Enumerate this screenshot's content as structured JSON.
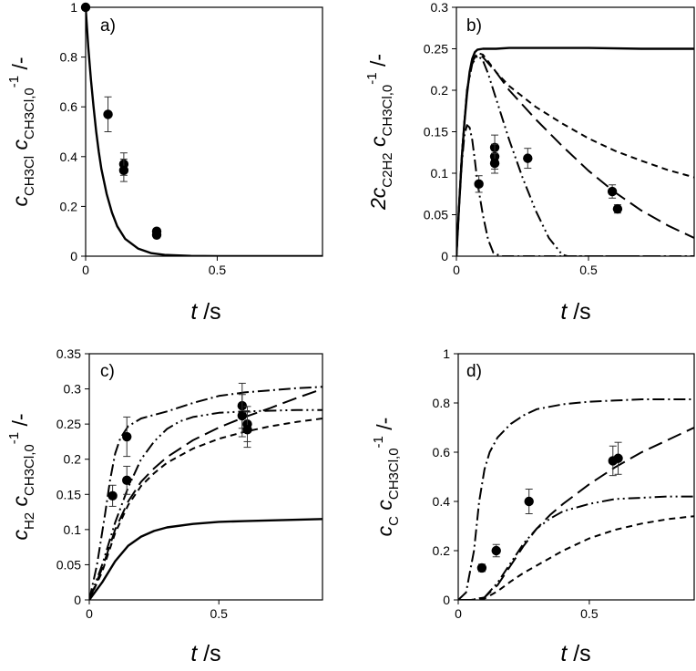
{
  "chart_data": [
    {
      "type": "scatter",
      "panel_label": "a)",
      "xlabel": {
        "var": "t",
        "unit": " /s"
      },
      "ylabel": {
        "parts": [
          [
            "c",
            ""
          ],
          [
            "CH3Cl",
            "sub"
          ],
          [
            "  c",
            ""
          ],
          [
            "CH3Cl,0",
            "sub"
          ],
          [
            "-1",
            "sup"
          ],
          [
            " /-",
            ""
          ]
        ]
      },
      "xlim": [
        0,
        0.9
      ],
      "ylim": [
        0,
        1
      ],
      "xticks": [
        "0",
        "0.5"
      ],
      "xtick_values": [
        0,
        0.5
      ],
      "yticks": [
        "0",
        "0.2",
        "0.4",
        "0.6",
        "0.8",
        "1"
      ],
      "ytick_values": [
        0,
        0.2,
        0.4,
        0.6,
        0.8,
        1.0
      ],
      "points": [
        {
          "x": 0.0,
          "y": 1.0,
          "err": 0
        },
        {
          "x": 0.085,
          "y": 0.57,
          "err": 0.07
        },
        {
          "x": 0.145,
          "y": 0.37,
          "err": 0.045
        },
        {
          "x": 0.145,
          "y": 0.345,
          "err": 0.045
        },
        {
          "x": 0.27,
          "y": 0.1,
          "err": 0
        },
        {
          "x": 0.27,
          "y": 0.085,
          "err": 0
        }
      ],
      "series": [
        {
          "style": "solid",
          "x": [
            0,
            0.01,
            0.02,
            0.03,
            0.04,
            0.05,
            0.06,
            0.08,
            0.1,
            0.12,
            0.15,
            0.2,
            0.25,
            0.3,
            0.4,
            0.5,
            0.7,
            0.9
          ],
          "y": [
            1.0,
            0.84,
            0.71,
            0.6,
            0.5,
            0.42,
            0.35,
            0.25,
            0.175,
            0.12,
            0.07,
            0.03,
            0.012,
            0.005,
            0.001,
            0,
            0,
            0
          ]
        }
      ]
    },
    {
      "type": "scatter",
      "panel_label": "b)",
      "xlabel": {
        "var": "t",
        "unit": " /s"
      },
      "ylabel": {
        "parts": [
          [
            "2c",
            ""
          ],
          [
            "C2H2",
            "sub"
          ],
          [
            "  c",
            ""
          ],
          [
            "CH3Cl,0",
            "sub"
          ],
          [
            "-1",
            "sup"
          ],
          [
            " /-",
            ""
          ]
        ]
      },
      "xlim": [
        0,
        0.9
      ],
      "ylim": [
        0,
        0.3
      ],
      "xticks": [
        "0",
        "0.5"
      ],
      "xtick_values": [
        0,
        0.5
      ],
      "yticks": [
        "0",
        "0.05",
        "0.1",
        "0.15",
        "0.2",
        "0.25",
        "0.3"
      ],
      "ytick_values": [
        0,
        0.05,
        0.1,
        0.15,
        0.2,
        0.25,
        0.3
      ],
      "points": [
        {
          "x": 0.085,
          "y": 0.087,
          "err": 0.01
        },
        {
          "x": 0.145,
          "y": 0.131,
          "err": 0.015
        },
        {
          "x": 0.145,
          "y": 0.12,
          "err": 0.015
        },
        {
          "x": 0.145,
          "y": 0.112,
          "err": 0.012
        },
        {
          "x": 0.27,
          "y": 0.118,
          "err": 0.012
        },
        {
          "x": 0.59,
          "y": 0.078,
          "err": 0.008
        },
        {
          "x": 0.61,
          "y": 0.057,
          "err": 0.005
        }
      ],
      "series": [
        {
          "style": "solid",
          "x": [
            0,
            0.01,
            0.02,
            0.03,
            0.04,
            0.05,
            0.06,
            0.07,
            0.08,
            0.1,
            0.15,
            0.2,
            0.3,
            0.5,
            0.7,
            0.9
          ],
          "y": [
            0,
            0.06,
            0.115,
            0.16,
            0.195,
            0.222,
            0.238,
            0.246,
            0.249,
            0.25,
            0.25,
            0.251,
            0.251,
            0.251,
            0.25,
            0.25
          ]
        },
        {
          "style": "dash-short",
          "x": [
            0,
            0.02,
            0.04,
            0.06,
            0.08,
            0.1,
            0.12,
            0.15,
            0.2,
            0.3,
            0.4,
            0.5,
            0.6,
            0.7,
            0.8,
            0.9
          ],
          "y": [
            0,
            0.12,
            0.2,
            0.235,
            0.245,
            0.243,
            0.235,
            0.222,
            0.205,
            0.18,
            0.16,
            0.142,
            0.127,
            0.115,
            0.104,
            0.095
          ]
        },
        {
          "style": "dash-long",
          "x": [
            0,
            0.02,
            0.04,
            0.06,
            0.08,
            0.1,
            0.15,
            0.2,
            0.3,
            0.4,
            0.5,
            0.6,
            0.7,
            0.8,
            0.9
          ],
          "y": [
            0,
            0.12,
            0.2,
            0.235,
            0.244,
            0.24,
            0.222,
            0.2,
            0.165,
            0.133,
            0.103,
            0.077,
            0.055,
            0.037,
            0.022
          ]
        },
        {
          "style": "dash-dot-dot",
          "x": [
            0,
            0.02,
            0.04,
            0.06,
            0.08,
            0.1,
            0.12,
            0.15,
            0.2,
            0.25,
            0.3,
            0.35,
            0.4,
            0.42,
            0.5,
            0.9
          ],
          "y": [
            0,
            0.12,
            0.2,
            0.232,
            0.242,
            0.236,
            0.22,
            0.19,
            0.14,
            0.095,
            0.055,
            0.022,
            0.002,
            0,
            0,
            0
          ]
        },
        {
          "style": "dash-dot",
          "x": [
            0,
            0.01,
            0.02,
            0.03,
            0.04,
            0.05,
            0.06,
            0.07,
            0.08,
            0.1,
            0.12,
            0.14,
            0.17,
            0.25,
            0.5,
            0.9
          ],
          "y": [
            0,
            0.06,
            0.11,
            0.145,
            0.158,
            0.155,
            0.14,
            0.115,
            0.088,
            0.05,
            0.02,
            0.004,
            0,
            0,
            0,
            0
          ]
        }
      ]
    },
    {
      "type": "scatter",
      "panel_label": "c)",
      "xlabel": {
        "var": "t",
        "unit": " /s"
      },
      "ylabel": {
        "parts": [
          [
            "c",
            ""
          ],
          [
            "H2",
            "sub"
          ],
          [
            "  c",
            ""
          ],
          [
            "CH3Cl,0",
            "sub"
          ],
          [
            "-1",
            "sup"
          ],
          [
            " /-",
            ""
          ]
        ]
      },
      "xlim": [
        0,
        0.9
      ],
      "ylim": [
        0,
        0.35
      ],
      "xticks": [
        "0",
        "0.5"
      ],
      "xtick_values": [
        0,
        0.5
      ],
      "yticks": [
        "0",
        "0.05",
        "0.1",
        "0.15",
        "0.2",
        "0.25",
        "0.3",
        "0.35"
      ],
      "ytick_values": [
        0,
        0.05,
        0.1,
        0.15,
        0.2,
        0.25,
        0.3,
        0.35
      ],
      "points": [
        {
          "x": 0.09,
          "y": 0.148,
          "err": 0.015
        },
        {
          "x": 0.145,
          "y": 0.232,
          "err": 0.028
        },
        {
          "x": 0.145,
          "y": 0.17,
          "err": 0.02
        },
        {
          "x": 0.59,
          "y": 0.276,
          "err": 0.032
        },
        {
          "x": 0.59,
          "y": 0.262,
          "err": 0.03
        },
        {
          "x": 0.61,
          "y": 0.25,
          "err": 0.025
        },
        {
          "x": 0.61,
          "y": 0.242,
          "err": 0.025
        }
      ],
      "series": [
        {
          "style": "solid",
          "x": [
            0,
            0.05,
            0.1,
            0.15,
            0.2,
            0.25,
            0.3,
            0.4,
            0.5,
            0.6,
            0.7,
            0.8,
            0.9
          ],
          "y": [
            0,
            0.025,
            0.055,
            0.077,
            0.09,
            0.098,
            0.103,
            0.108,
            0.111,
            0.112,
            0.113,
            0.114,
            0.115
          ]
        },
        {
          "style": "dash-short",
          "x": [
            0,
            0.05,
            0.1,
            0.15,
            0.2,
            0.25,
            0.3,
            0.4,
            0.5,
            0.6,
            0.7,
            0.8,
            0.9
          ],
          "y": [
            0,
            0.04,
            0.095,
            0.135,
            0.162,
            0.18,
            0.195,
            0.215,
            0.229,
            0.239,
            0.247,
            0.253,
            0.258
          ]
        },
        {
          "style": "dash-long",
          "x": [
            0,
            0.05,
            0.1,
            0.15,
            0.2,
            0.25,
            0.3,
            0.4,
            0.5,
            0.6,
            0.7,
            0.8,
            0.9
          ],
          "y": [
            0,
            0.045,
            0.1,
            0.14,
            0.168,
            0.187,
            0.203,
            0.227,
            0.245,
            0.26,
            0.273,
            0.287,
            0.3
          ]
        },
        {
          "style": "dash-dot-dot",
          "x": [
            0,
            0.05,
            0.1,
            0.15,
            0.2,
            0.25,
            0.3,
            0.35,
            0.4,
            0.5,
            0.6,
            0.7,
            0.8,
            0.9
          ],
          "y": [
            0,
            0.05,
            0.11,
            0.16,
            0.2,
            0.225,
            0.243,
            0.254,
            0.26,
            0.266,
            0.268,
            0.269,
            0.27,
            0.27
          ]
        },
        {
          "style": "dash-dot",
          "x": [
            0,
            0.03,
            0.06,
            0.08,
            0.1,
            0.12,
            0.15,
            0.2,
            0.25,
            0.3,
            0.4,
            0.5,
            0.6,
            0.7,
            0.8,
            0.9
          ],
          "y": [
            0,
            0.05,
            0.12,
            0.17,
            0.208,
            0.23,
            0.247,
            0.258,
            0.263,
            0.268,
            0.28,
            0.29,
            0.295,
            0.298,
            0.301,
            0.303
          ]
        }
      ]
    },
    {
      "type": "scatter",
      "panel_label": "d)",
      "xlabel": {
        "var": "t",
        "unit": " /s"
      },
      "ylabel": {
        "parts": [
          [
            "c",
            ""
          ],
          [
            "C",
            "sub"
          ],
          [
            "  c",
            ""
          ],
          [
            "CH3Cl,0",
            "sub"
          ],
          [
            "-1",
            "sup"
          ],
          [
            " /-",
            ""
          ]
        ]
      },
      "xlim": [
        0,
        0.9
      ],
      "ylim": [
        0,
        1
      ],
      "xticks": [
        "0",
        "0.5"
      ],
      "xtick_values": [
        0,
        0.5
      ],
      "yticks": [
        "0",
        "0.2",
        "0.4",
        "0.6",
        "0.8",
        "1"
      ],
      "ytick_values": [
        0,
        0.2,
        0.4,
        0.6,
        0.8,
        1.0
      ],
      "points": [
        {
          "x": 0.09,
          "y": 0.13,
          "err": 0.015
        },
        {
          "x": 0.145,
          "y": 0.2,
          "err": 0.025
        },
        {
          "x": 0.27,
          "y": 0.4,
          "err": 0.05
        },
        {
          "x": 0.59,
          "y": 0.565,
          "err": 0.06
        },
        {
          "x": 0.61,
          "y": 0.575,
          "err": 0.065
        }
      ],
      "series": [
        {
          "style": "dash-short",
          "x": [
            0,
            0.05,
            0.1,
            0.15,
            0.2,
            0.25,
            0.3,
            0.35,
            0.4,
            0.5,
            0.6,
            0.7,
            0.8,
            0.9
          ],
          "y": [
            0,
            0,
            0.005,
            0.035,
            0.075,
            0.11,
            0.14,
            0.17,
            0.2,
            0.25,
            0.285,
            0.31,
            0.328,
            0.34
          ]
        },
        {
          "style": "dash-long",
          "x": [
            0,
            0.05,
            0.1,
            0.15,
            0.2,
            0.25,
            0.3,
            0.35,
            0.4,
            0.5,
            0.6,
            0.7,
            0.8,
            0.9
          ],
          "y": [
            0,
            0,
            0.01,
            0.06,
            0.14,
            0.22,
            0.29,
            0.345,
            0.39,
            0.47,
            0.54,
            0.6,
            0.65,
            0.7
          ]
        },
        {
          "style": "dash-dot-dot",
          "x": [
            0,
            0.05,
            0.1,
            0.15,
            0.2,
            0.25,
            0.3,
            0.35,
            0.4,
            0.5,
            0.6,
            0.7,
            0.8,
            0.9
          ],
          "y": [
            0,
            0,
            0.01,
            0.07,
            0.15,
            0.23,
            0.29,
            0.33,
            0.36,
            0.39,
            0.41,
            0.415,
            0.42,
            0.42
          ]
        },
        {
          "style": "dash-dot",
          "x": [
            0,
            0.03,
            0.06,
            0.08,
            0.1,
            0.12,
            0.15,
            0.2,
            0.25,
            0.3,
            0.4,
            0.5,
            0.6,
            0.7,
            0.8,
            0.9
          ],
          "y": [
            0,
            0.03,
            0.2,
            0.4,
            0.53,
            0.6,
            0.66,
            0.715,
            0.75,
            0.775,
            0.795,
            0.805,
            0.81,
            0.815,
            0.815,
            0.815
          ]
        }
      ]
    }
  ]
}
